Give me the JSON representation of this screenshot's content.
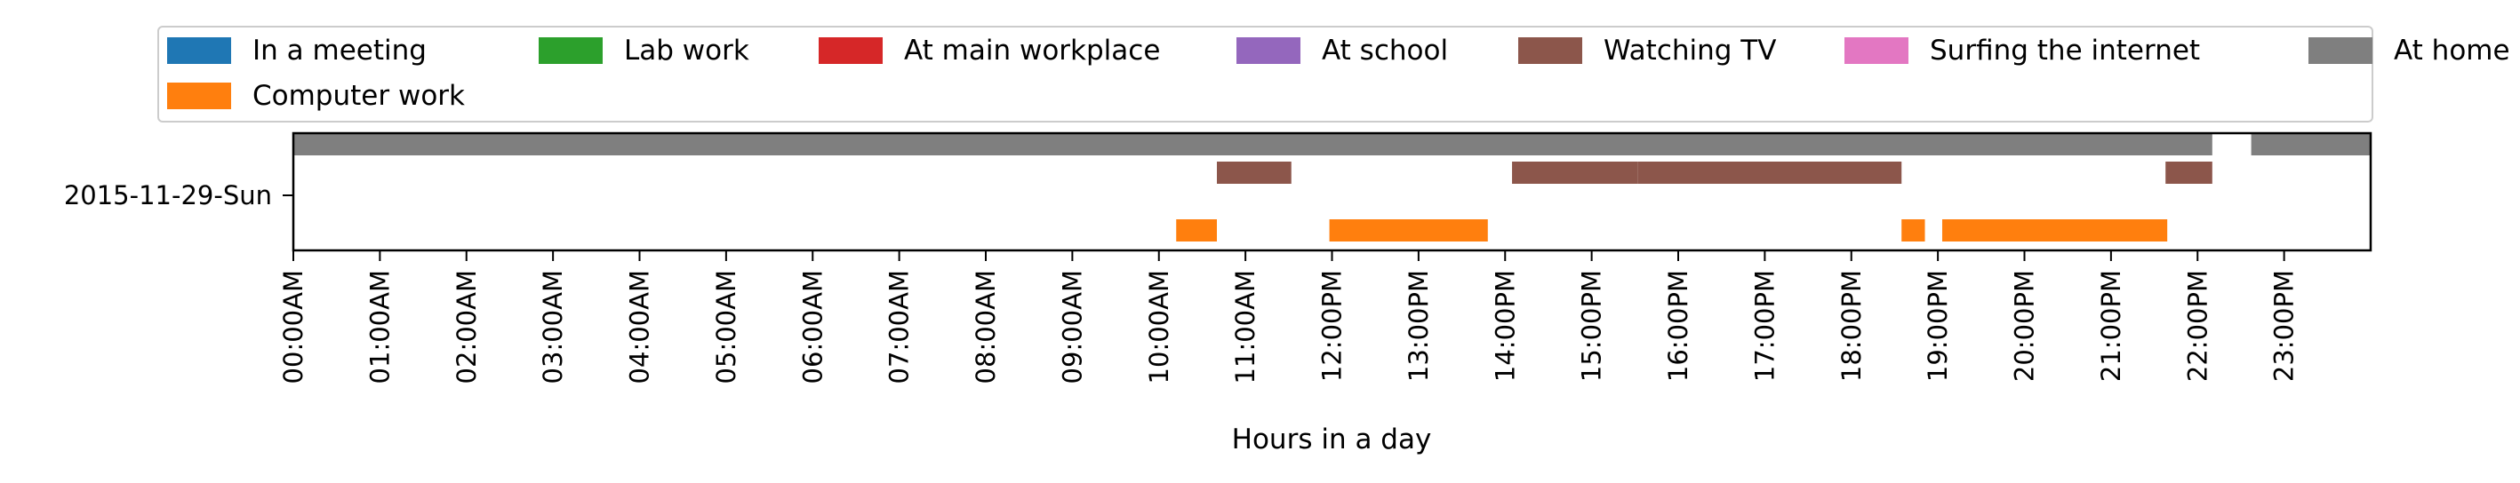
{
  "chart_data": {
    "type": "timeline",
    "xlabel": "Hours in a day",
    "ylabel": "",
    "row_label": "2015-11-29-Sun",
    "xlim": [
      0,
      24
    ],
    "x_ticks": [
      {
        "value": 0,
        "label": "00:00AM"
      },
      {
        "value": 1,
        "label": "01:00AM"
      },
      {
        "value": 2,
        "label": "02:00AM"
      },
      {
        "value": 3,
        "label": "03:00AM"
      },
      {
        "value": 4,
        "label": "04:00AM"
      },
      {
        "value": 5,
        "label": "05:00AM"
      },
      {
        "value": 6,
        "label": "06:00AM"
      },
      {
        "value": 7,
        "label": "07:00AM"
      },
      {
        "value": 8,
        "label": "08:00AM"
      },
      {
        "value": 9,
        "label": "09:00AM"
      },
      {
        "value": 10,
        "label": "10:00AM"
      },
      {
        "value": 11,
        "label": "11:00AM"
      },
      {
        "value": 12,
        "label": "12:00PM"
      },
      {
        "value": 13,
        "label": "13:00PM"
      },
      {
        "value": 14,
        "label": "14:00PM"
      },
      {
        "value": 15,
        "label": "15:00PM"
      },
      {
        "value": 16,
        "label": "16:00PM"
      },
      {
        "value": 17,
        "label": "17:00PM"
      },
      {
        "value": 18,
        "label": "18:00PM"
      },
      {
        "value": 19,
        "label": "19:00PM"
      },
      {
        "value": 20,
        "label": "20:00PM"
      },
      {
        "value": 21,
        "label": "21:00PM"
      },
      {
        "value": 22,
        "label": "22:00PM"
      },
      {
        "value": 23,
        "label": "23:00PM"
      }
    ],
    "legend": {
      "placement": "top",
      "entries": [
        {
          "name": "In a meeting",
          "color": "#1f77b4"
        },
        {
          "name": "Computer work",
          "color": "#ff7f0e"
        },
        {
          "name": "Lab work",
          "color": "#2ca02c"
        },
        {
          "name": "At main workplace",
          "color": "#d62728"
        },
        {
          "name": "At school",
          "color": "#9467bd"
        },
        {
          "name": "Watching TV",
          "color": "#8c564b"
        },
        {
          "name": "Surfing the internet",
          "color": "#e377c2"
        },
        {
          "name": "At home",
          "color": "#7f7f7f"
        }
      ]
    },
    "series": [
      {
        "name": "At home",
        "lane": 0,
        "color": "#7f7f7f",
        "intervals": [
          [
            0.0,
            22.17
          ],
          [
            22.62,
            24.0
          ]
        ]
      },
      {
        "name": "Watching TV",
        "lane": 1,
        "color": "#8c564b",
        "intervals": [
          [
            10.67,
            11.53
          ],
          [
            14.08,
            15.53
          ],
          [
            15.53,
            18.58
          ],
          [
            21.63,
            22.17
          ]
        ]
      },
      {
        "name": "Computer work",
        "lane": 2,
        "color": "#ff7f0e",
        "intervals": [
          [
            10.2,
            10.67
          ],
          [
            11.97,
            13.8
          ],
          [
            18.58,
            18.85
          ],
          [
            19.05,
            21.65
          ]
        ]
      }
    ]
  }
}
